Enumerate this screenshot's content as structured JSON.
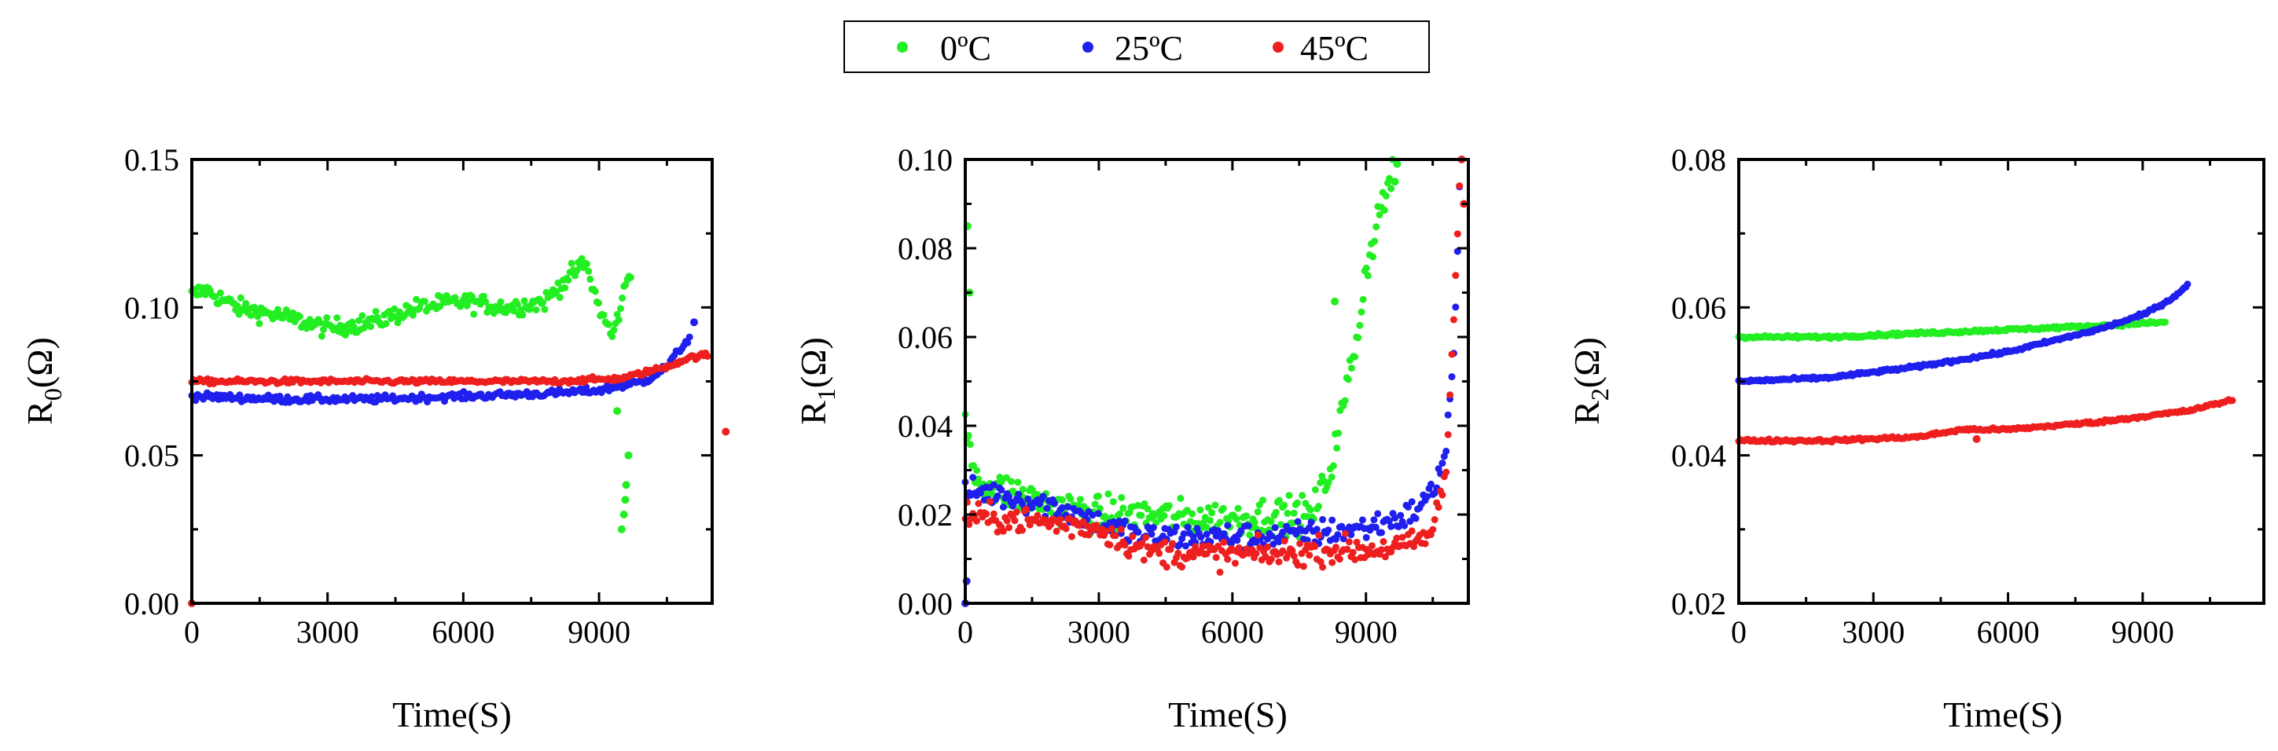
{
  "legend": {
    "entries": [
      {
        "label": "0ºC",
        "color": "#22ee22"
      },
      {
        "label": "25ºC",
        "color": "#1f1fee"
      },
      {
        "label": "45ºC",
        "color": "#ee1f1f"
      }
    ]
  },
  "chart_data": [
    {
      "type": "scatter",
      "title": "",
      "xlabel": "Time(S)",
      "ylabel": {
        "base": "R",
        "sub": "0",
        "unit": "(Ω)"
      },
      "xlim": [
        0,
        11500
      ],
      "ylim": [
        0.0,
        0.15
      ],
      "xticks": [
        0,
        3000,
        6000,
        9000
      ],
      "xtick_labels": [
        "0",
        "3000",
        "6000",
        "9000"
      ],
      "yticks": [
        0.0,
        0.05,
        0.1,
        0.15
      ],
      "ytick_labels": [
        "0.00",
        "0.05",
        "0.10",
        "0.15"
      ],
      "series": [
        {
          "name": "0ºC",
          "color": "#22ee22",
          "noise": 0.003,
          "x": [
            0,
            300,
            1000,
            2000,
            3000,
            4000,
            5000,
            6000,
            7000,
            7800,
            8300,
            8700,
            9000,
            9300,
            9600,
            9700
          ],
          "y": [
            0.104,
            0.106,
            0.1,
            0.097,
            0.093,
            0.095,
            0.1,
            0.102,
            0.1,
            0.102,
            0.11,
            0.115,
            0.1,
            0.09,
            0.108,
            0.112
          ],
          "extra": [
            [
              9500,
              0.025
            ],
            [
              9550,
              0.03
            ],
            [
              9600,
              0.04
            ],
            [
              9580,
              0.035
            ],
            [
              9650,
              0.05
            ],
            [
              9400,
              0.065
            ]
          ]
        },
        {
          "name": "25ºC",
          "color": "#1f1fee",
          "noise": 0.0012,
          "x": [
            0,
            2000,
            4000,
            6000,
            8000,
            9000,
            10000,
            10500,
            10800,
            11000
          ],
          "y": [
            0.07,
            0.069,
            0.069,
            0.07,
            0.071,
            0.072,
            0.075,
            0.08,
            0.086,
            0.09
          ],
          "extra": [
            [
              11100,
              0.095
            ]
          ]
        },
        {
          "name": "45ºC",
          "color": "#ee1f1f",
          "noise": 0.0008,
          "x": [
            0,
            2000,
            4000,
            6000,
            8000,
            9500,
            10500,
            11000,
            11400
          ],
          "y": [
            0.075,
            0.075,
            0.075,
            0.075,
            0.075,
            0.076,
            0.08,
            0.083,
            0.084
          ],
          "extra": [
            [
              0,
              0.0
            ],
            [
              11800,
              0.058
            ]
          ]
        }
      ]
    },
    {
      "type": "scatter",
      "title": "",
      "xlabel": "Time(S)",
      "ylabel": {
        "base": "R",
        "sub": "1",
        "unit": "(Ω)"
      },
      "xlim": [
        0,
        11300
      ],
      "ylim": [
        0.0,
        0.1
      ],
      "xticks": [
        0,
        3000,
        6000,
        9000
      ],
      "xtick_labels": [
        "0",
        "3000",
        "6000",
        "9000"
      ],
      "yticks": [
        0.0,
        0.02,
        0.04,
        0.06,
        0.08,
        0.1
      ],
      "ytick_labels": [
        "0.00",
        "0.02",
        "0.04",
        "0.06",
        "0.08",
        "0.10"
      ],
      "series": [
        {
          "name": "0ºC",
          "color": "#22ee22",
          "noise": 0.004,
          "x": [
            0,
            200,
            500,
            1000,
            2000,
            3000,
            4000,
            5000,
            6000,
            7000,
            7800,
            8200,
            8500,
            8800,
            9000,
            9300,
            9600
          ],
          "y": [
            0.04,
            0.03,
            0.026,
            0.025,
            0.022,
            0.02,
            0.02,
            0.019,
            0.019,
            0.02,
            0.02,
            0.03,
            0.045,
            0.06,
            0.075,
            0.088,
            0.097
          ],
          "extra": [
            [
              50,
              0.085
            ],
            [
              100,
              0.07
            ],
            [
              8300,
              0.068
            ],
            [
              9700,
              0.099
            ],
            [
              9650,
              0.095
            ]
          ]
        },
        {
          "name": "25ºC",
          "color": "#1f1fee",
          "noise": 0.003,
          "x": [
            0,
            500,
            1000,
            2000,
            3000,
            4000,
            5000,
            6000,
            7000,
            8000,
            9000,
            10000,
            10500,
            10800,
            11000,
            11100
          ],
          "y": [
            0.025,
            0.025,
            0.024,
            0.022,
            0.018,
            0.015,
            0.015,
            0.015,
            0.015,
            0.016,
            0.017,
            0.02,
            0.025,
            0.035,
            0.06,
            0.095
          ],
          "extra": [
            [
              0,
              0.0
            ],
            [
              30,
              0.005
            ]
          ]
        },
        {
          "name": "45ºC",
          "color": "#ee1f1f",
          "noise": 0.003,
          "x": [
            0,
            500,
            1000,
            2000,
            3000,
            4000,
            5000,
            6000,
            7000,
            8000,
            9000,
            10000,
            10500,
            10800,
            11000,
            11100
          ],
          "y": [
            0.02,
            0.019,
            0.019,
            0.018,
            0.017,
            0.012,
            0.011,
            0.011,
            0.011,
            0.012,
            0.012,
            0.013,
            0.016,
            0.03,
            0.07,
            0.095
          ],
          "extra": [
            [
              11150,
              0.1
            ],
            [
              11200,
              0.09
            ]
          ]
        }
      ]
    },
    {
      "type": "scatter",
      "title": "",
      "xlabel": "Time(S)",
      "ylabel": {
        "base": "R",
        "sub": "2",
        "unit": "(Ω)"
      },
      "xlim": [
        0,
        11700
      ],
      "ylim": [
        0.02,
        0.08
      ],
      "xticks": [
        0,
        3000,
        6000,
        9000
      ],
      "xtick_labels": [
        "0",
        "3000",
        "6000",
        "9000"
      ],
      "yticks": [
        0.02,
        0.04,
        0.06,
        0.08
      ],
      "ytick_labels": [
        "0.02",
        "0.04",
        "0.06",
        "0.08"
      ],
      "series": [
        {
          "name": "0ºC",
          "color": "#22ee22",
          "noise": 0.0002,
          "x": [
            0,
            2000,
            4000,
            6000,
            8000,
            9500
          ],
          "y": [
            0.056,
            0.056,
            0.0565,
            0.057,
            0.0575,
            0.058
          ],
          "extra": []
        },
        {
          "name": "25ºC",
          "color": "#1f1fee",
          "noise": 0.0002,
          "x": [
            0,
            2000,
            4000,
            6000,
            8000,
            9000,
            9600,
            10000
          ],
          "y": [
            0.05,
            0.0505,
            0.052,
            0.054,
            0.057,
            0.059,
            0.061,
            0.063
          ],
          "extra": []
        },
        {
          "name": "45ºC",
          "color": "#ee1f1f",
          "noise": 0.0002,
          "x": [
            0,
            2000,
            4000,
            5000,
            6000,
            8000,
            10000,
            11000
          ],
          "y": [
            0.042,
            0.042,
            0.0425,
            0.0435,
            0.0435,
            0.0445,
            0.046,
            0.0475
          ],
          "extra": [
            [
              5300,
              0.0422
            ]
          ]
        }
      ]
    }
  ]
}
